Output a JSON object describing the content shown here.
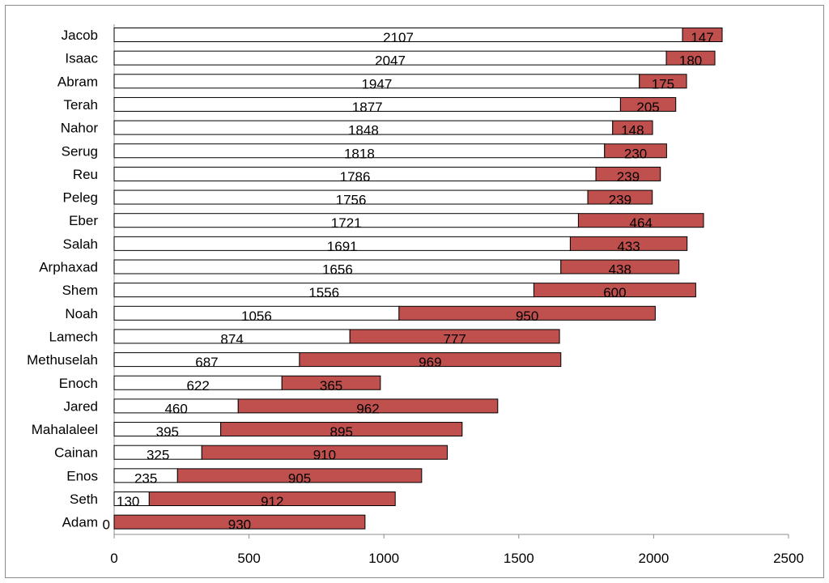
{
  "chart_data": {
    "type": "bar",
    "orientation": "horizontal",
    "stacked": true,
    "categories": [
      "Jacob",
      "Isaac",
      "Abram",
      "Terah",
      "Nahor",
      "Serug",
      "Reu",
      "Peleg",
      "Eber",
      "Salah",
      "Arphaxad",
      "Shem",
      "Noah",
      "Lamech",
      "Methuselah",
      "Enoch",
      "Jared",
      "Mahalaleel",
      "Cainan",
      "Enos",
      "Seth",
      "Adam"
    ],
    "series": [
      {
        "color": "#ffffff",
        "values": [
          2107,
          2047,
          1947,
          1877,
          1848,
          1818,
          1786,
          1756,
          1721,
          1691,
          1656,
          1556,
          1056,
          874,
          687,
          622,
          460,
          395,
          325,
          235,
          130,
          0
        ]
      },
      {
        "color": "#c0504d",
        "values": [
          147,
          180,
          175,
          205,
          148,
          230,
          239,
          239,
          464,
          433,
          438,
          600,
          950,
          777,
          969,
          365,
          962,
          895,
          910,
          905,
          912,
          930
        ]
      }
    ],
    "xlim": [
      0,
      2500
    ],
    "xticks": [
      "0",
      "500",
      "1000",
      "1500",
      "2000",
      "2500"
    ],
    "title": "",
    "xlabel": "",
    "ylabel": "",
    "grid": false,
    "legend": "none"
  }
}
